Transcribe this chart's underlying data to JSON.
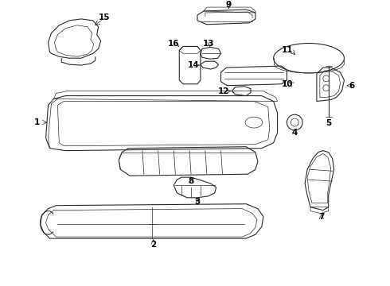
{
  "background_color": "#ffffff",
  "line_color": "#2a2a2a",
  "text_color": "#000000",
  "fig_width": 4.9,
  "fig_height": 3.6,
  "dpi": 100
}
